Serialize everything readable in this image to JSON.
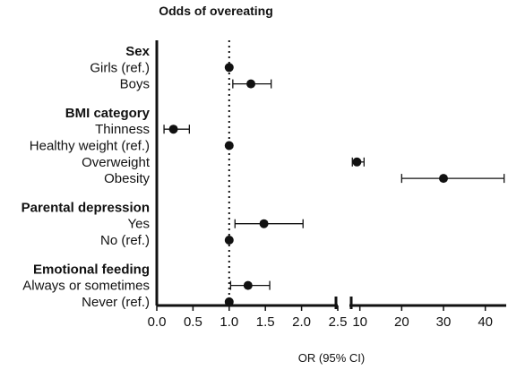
{
  "chart_data": {
    "type": "forest",
    "title": "Odds of overeating",
    "xlabel": "OR (95% CI)",
    "reference_line": 1.0,
    "x_axis": {
      "break": true,
      "left_panel": {
        "range": [
          0,
          2.5
        ],
        "ticks": [
          "0.0",
          "0.5",
          "1.0",
          "1.5",
          "2.0",
          "2.5"
        ]
      },
      "right_panel": {
        "range": [
          7.5,
          45
        ],
        "ticks": [
          "10",
          "20",
          "30",
          "40"
        ]
      }
    },
    "groups": [
      {
        "name": "Sex",
        "rows": [
          {
            "label": "Girls (ref.)",
            "or": 1.0,
            "lo": null,
            "hi": null
          },
          {
            "label": "Boys",
            "or": 1.3,
            "lo": 1.05,
            "hi": 1.58
          }
        ]
      },
      {
        "name": "BMI category",
        "rows": [
          {
            "label": "Thinness",
            "or": 0.23,
            "lo": 0.1,
            "hi": 0.45
          },
          {
            "label": "Healthy weight (ref.)",
            "or": 1.0,
            "lo": null,
            "hi": null
          },
          {
            "label": "Overweight",
            "or": 9.3,
            "lo": 8.2,
            "hi": 11.0
          },
          {
            "label": "Obesity",
            "or": 30.0,
            "lo": 20.0,
            "hi": 44.5
          }
        ]
      },
      {
        "name": "Parental depression",
        "rows": [
          {
            "label": "Yes",
            "or": 1.48,
            "lo": 1.08,
            "hi": 2.02
          },
          {
            "label": "No (ref.)",
            "or": 1.0,
            "lo": null,
            "hi": null
          }
        ]
      },
      {
        "name": "Emotional feeding",
        "rows": [
          {
            "label": "Always or sometimes",
            "or": 1.26,
            "lo": 1.02,
            "hi": 1.56
          },
          {
            "label": "Never (ref.)",
            "or": 1.0,
            "lo": null,
            "hi": null
          }
        ]
      }
    ]
  }
}
